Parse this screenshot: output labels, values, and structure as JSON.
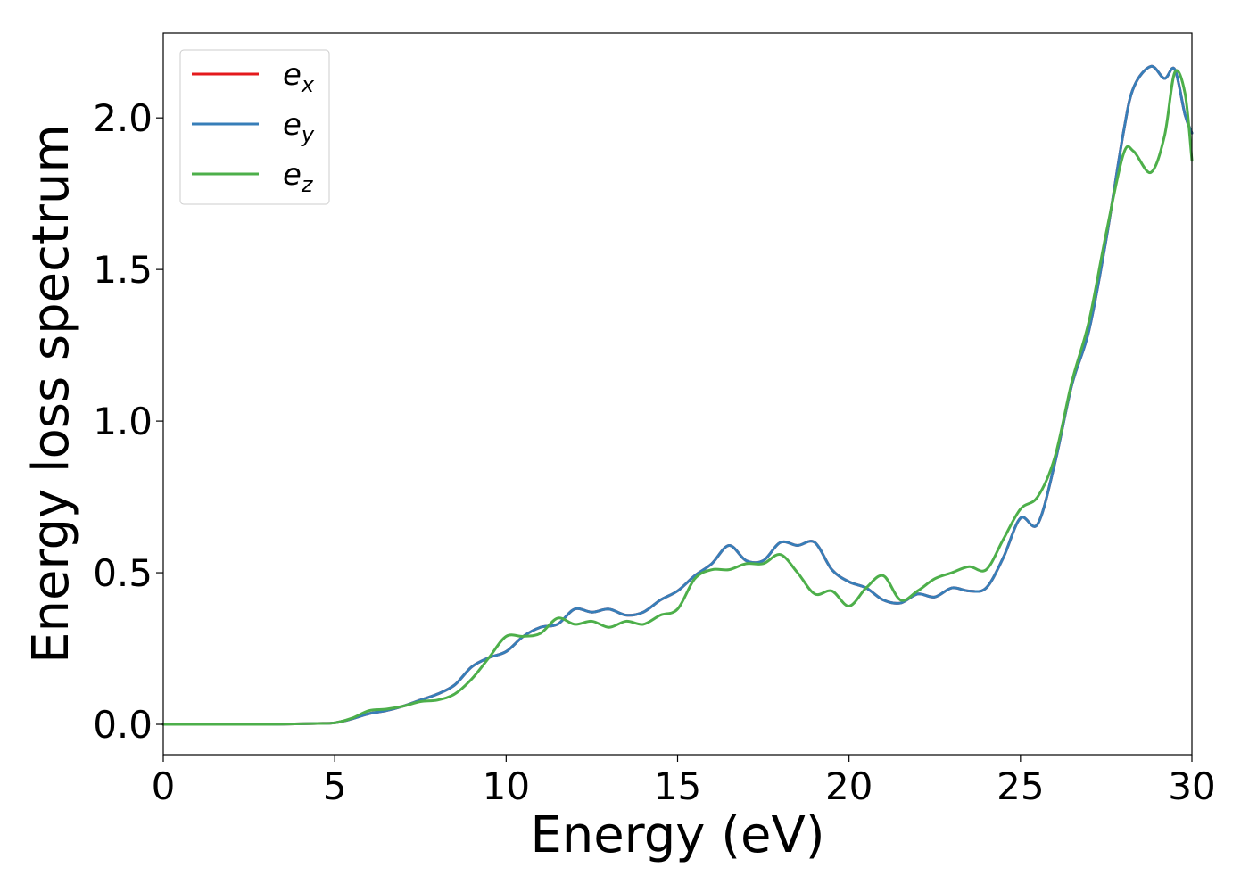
{
  "chart_data": {
    "type": "line",
    "title": "",
    "xlabel": "Energy (eV)",
    "ylabel": "Energy loss spectrum",
    "xlim": [
      0,
      30
    ],
    "ylim": [
      -0.1,
      2.28
    ],
    "xticks": [
      0,
      5,
      10,
      15,
      20,
      25,
      30
    ],
    "xtick_labels": [
      "0",
      "5",
      "10",
      "15",
      "20",
      "25",
      "30"
    ],
    "yticks": [
      0.0,
      0.5,
      1.0,
      1.5,
      2.0
    ],
    "ytick_labels": [
      "0.0",
      "0.5",
      "1.0",
      "1.5",
      "2.0"
    ],
    "grid": false,
    "legend_position": "top-left",
    "x": [
      0,
      1,
      2,
      3,
      4,
      4.5,
      5,
      5.5,
      6,
      6.5,
      7,
      7.5,
      8,
      8.5,
      9,
      9.5,
      10,
      10.5,
      11,
      11.5,
      12,
      12.5,
      13,
      13.5,
      14,
      14.5,
      15,
      15.5,
      16,
      16.5,
      17,
      17.5,
      18,
      18.5,
      19,
      19.5,
      20,
      20.5,
      21,
      21.5,
      22,
      22.5,
      23,
      23.5,
      24,
      24.5,
      25,
      25.5,
      26,
      26.5,
      27,
      27.5,
      28,
      28.3,
      28.8,
      29.2,
      29.5,
      29.8,
      30
    ],
    "series": [
      {
        "name": "e_x",
        "label_base": "e",
        "label_sub": "x",
        "color": "#e41a1c",
        "y": [
          0,
          0,
          0,
          0,
          0.002,
          0.003,
          0.005,
          0.018,
          0.035,
          0.045,
          0.06,
          0.08,
          0.1,
          0.13,
          0.19,
          0.22,
          0.24,
          0.29,
          0.32,
          0.33,
          0.38,
          0.37,
          0.38,
          0.36,
          0.37,
          0.41,
          0.44,
          0.49,
          0.53,
          0.59,
          0.54,
          0.54,
          0.6,
          0.59,
          0.6,
          0.51,
          0.47,
          0.45,
          0.41,
          0.4,
          0.43,
          0.42,
          0.45,
          0.44,
          0.45,
          0.55,
          0.68,
          0.66,
          0.86,
          1.12,
          1.3,
          1.6,
          1.95,
          2.1,
          2.17,
          2.13,
          2.16,
          2.01,
          1.95
        ]
      },
      {
        "name": "e_y",
        "label_base": "e",
        "label_sub": "y",
        "color": "#377eb8",
        "y": [
          0,
          0,
          0,
          0,
          0.002,
          0.003,
          0.005,
          0.018,
          0.035,
          0.045,
          0.06,
          0.08,
          0.1,
          0.13,
          0.19,
          0.22,
          0.24,
          0.29,
          0.32,
          0.33,
          0.38,
          0.37,
          0.38,
          0.36,
          0.37,
          0.41,
          0.44,
          0.49,
          0.53,
          0.59,
          0.54,
          0.54,
          0.6,
          0.59,
          0.6,
          0.51,
          0.47,
          0.45,
          0.41,
          0.4,
          0.43,
          0.42,
          0.45,
          0.44,
          0.45,
          0.55,
          0.68,
          0.66,
          0.86,
          1.12,
          1.3,
          1.6,
          1.95,
          2.1,
          2.17,
          2.13,
          2.16,
          2.01,
          1.95
        ]
      },
      {
        "name": "e_z",
        "label_base": "e",
        "label_sub": "z",
        "color": "#4daf4a",
        "y": [
          0,
          0,
          0,
          0,
          0.002,
          0.003,
          0.005,
          0.02,
          0.045,
          0.05,
          0.06,
          0.075,
          0.08,
          0.1,
          0.15,
          0.22,
          0.29,
          0.29,
          0.3,
          0.35,
          0.33,
          0.34,
          0.32,
          0.34,
          0.33,
          0.36,
          0.38,
          0.48,
          0.51,
          0.51,
          0.53,
          0.53,
          0.56,
          0.5,
          0.43,
          0.44,
          0.39,
          0.45,
          0.49,
          0.41,
          0.44,
          0.48,
          0.5,
          0.52,
          0.51,
          0.61,
          0.71,
          0.75,
          0.88,
          1.13,
          1.33,
          1.62,
          1.88,
          1.89,
          1.82,
          1.94,
          2.15,
          2.08,
          1.86
        ]
      }
    ]
  }
}
